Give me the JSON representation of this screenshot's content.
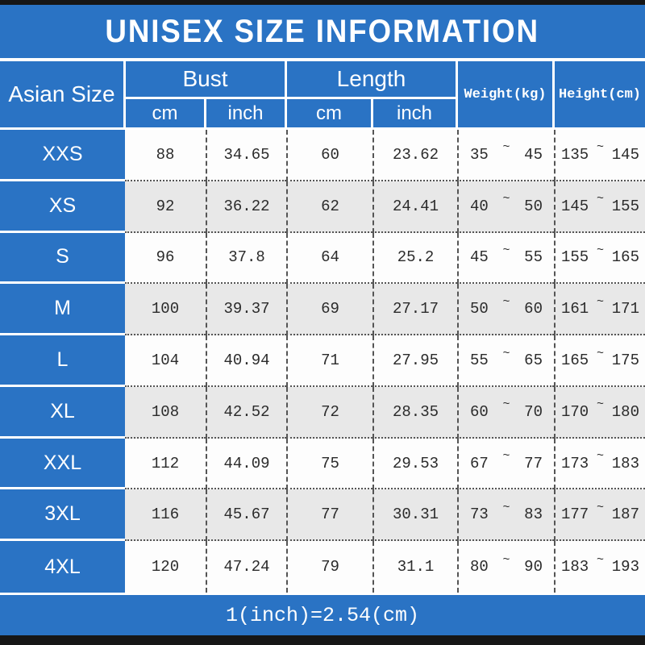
{
  "title": "UNISEX SIZE INFORMATION",
  "footer": "1(inch)=2.54(cm)",
  "colors": {
    "blue": "#2a73c4",
    "alt_row_gray": "#e8e8e8",
    "white_row": "#fdfdfd",
    "top_bottom_bar": "#161616",
    "data_text": "#2b2b2b",
    "header_text": "#ffffff"
  },
  "table": {
    "headers": {
      "asian_size": "Asian Size",
      "bust": "Bust",
      "length": "Length",
      "weight": "Weight(kg)",
      "height": "Height(cm)",
      "cm": "cm",
      "inch": "inch"
    },
    "tilde": "~",
    "rows": [
      {
        "size": "XXS",
        "bust_cm": "88",
        "bust_inch": "34.65",
        "length_cm": "60",
        "length_inch": "23.62",
        "weight_min": "35",
        "weight_max": "45",
        "height_min": "135",
        "height_max": "145"
      },
      {
        "size": "XS",
        "bust_cm": "92",
        "bust_inch": "36.22",
        "length_cm": "62",
        "length_inch": "24.41",
        "weight_min": "40",
        "weight_max": "50",
        "height_min": "145",
        "height_max": "155"
      },
      {
        "size": "S",
        "bust_cm": "96",
        "bust_inch": "37.8",
        "length_cm": "64",
        "length_inch": "25.2",
        "weight_min": "45",
        "weight_max": "55",
        "height_min": "155",
        "height_max": "165"
      },
      {
        "size": "M",
        "bust_cm": "100",
        "bust_inch": "39.37",
        "length_cm": "69",
        "length_inch": "27.17",
        "weight_min": "50",
        "weight_max": "60",
        "height_min": "161",
        "height_max": "171"
      },
      {
        "size": "L",
        "bust_cm": "104",
        "bust_inch": "40.94",
        "length_cm": "71",
        "length_inch": "27.95",
        "weight_min": "55",
        "weight_max": "65",
        "height_min": "165",
        "height_max": "175"
      },
      {
        "size": "XL",
        "bust_cm": "108",
        "bust_inch": "42.52",
        "length_cm": "72",
        "length_inch": "28.35",
        "weight_min": "60",
        "weight_max": "70",
        "height_min": "170",
        "height_max": "180"
      },
      {
        "size": "XXL",
        "bust_cm": "112",
        "bust_inch": "44.09",
        "length_cm": "75",
        "length_inch": "29.53",
        "weight_min": "67",
        "weight_max": "77",
        "height_min": "173",
        "height_max": "183"
      },
      {
        "size": "3XL",
        "bust_cm": "116",
        "bust_inch": "45.67",
        "length_cm": "77",
        "length_inch": "30.31",
        "weight_min": "73",
        "weight_max": "83",
        "height_min": "177",
        "height_max": "187"
      },
      {
        "size": "4XL",
        "bust_cm": "120",
        "bust_inch": "47.24",
        "length_cm": "79",
        "length_inch": "31.1",
        "weight_min": "80",
        "weight_max": "90",
        "height_min": "183",
        "height_max": "193"
      }
    ]
  }
}
